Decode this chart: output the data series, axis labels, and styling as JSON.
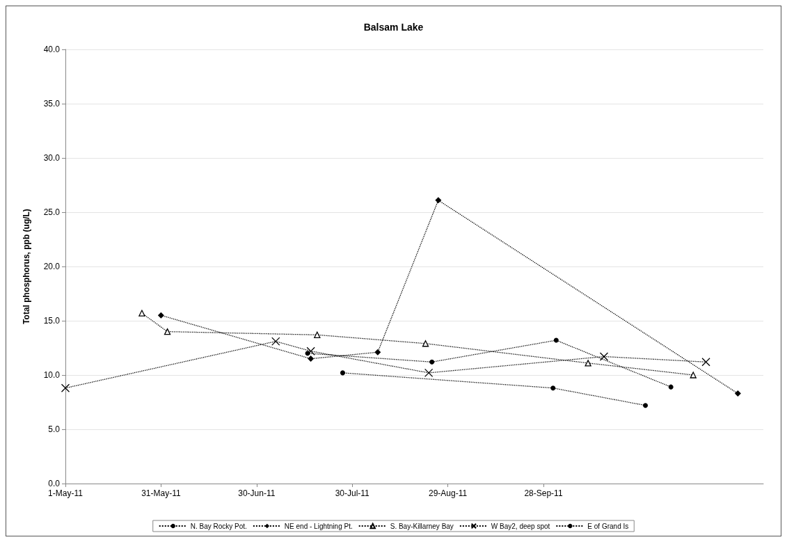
{
  "chart_data": {
    "type": "line",
    "title": "Balsam Lake",
    "ylabel": "Total phosphorus, ppb (ug/L)",
    "xlim": [
      "2011-05-01",
      "2011-12-06"
    ],
    "xticks": [
      {
        "value": "2011-05-01",
        "label": "1-May-11"
      },
      {
        "value": "2011-05-31",
        "label": "31-May-11"
      },
      {
        "value": "2011-06-30",
        "label": "30-Jun-11"
      },
      {
        "value": "2011-07-30",
        "label": "30-Jul-11"
      },
      {
        "value": "2011-08-29",
        "label": "29-Aug-11"
      },
      {
        "value": "2011-09-28",
        "label": "28-Sep-11"
      }
    ],
    "ylim": [
      0,
      40
    ],
    "yticks": [
      {
        "value": 0,
        "label": "0.0"
      },
      {
        "value": 5,
        "label": "5.0"
      },
      {
        "value": 10,
        "label": "10.0"
      },
      {
        "value": 15,
        "label": "15.0"
      },
      {
        "value": 20,
        "label": "20.0"
      },
      {
        "value": 25,
        "label": "25.0"
      },
      {
        "value": 30,
        "label": "30.0"
      },
      {
        "value": 35,
        "label": "35.0"
      },
      {
        "value": 40,
        "label": "40.0"
      }
    ],
    "grid": "y",
    "legend": "bottom",
    "line_style": "dotted",
    "series": [
      {
        "name": "N. Bay Rocky Pot.",
        "color": "#000000",
        "marker": "circle",
        "x": [
          "2011-07-16",
          "2011-08-24",
          "2011-10-02",
          "2011-11-07"
        ],
        "values": [
          12.0,
          11.2,
          13.2,
          8.9
        ]
      },
      {
        "name": "NE end - Lightning Pt.",
        "color": "#000000",
        "marker": "diamond",
        "x": [
          "2011-05-31",
          "2011-07-17",
          "2011-08-07",
          "2011-08-26",
          "2011-11-28"
        ],
        "values": [
          15.5,
          11.5,
          12.1,
          26.1,
          8.3
        ]
      },
      {
        "name": "S. Bay-Killarney Bay",
        "color": "#000000",
        "marker": "triangle",
        "x": [
          "2011-05-25",
          "2011-06-02",
          "2011-07-19",
          "2011-08-22",
          "2011-10-12",
          "2011-11-14"
        ],
        "values": [
          15.7,
          14.0,
          13.7,
          12.9,
          11.1,
          10.0
        ]
      },
      {
        "name": "W Bay2, deep spot",
        "color": "#000000",
        "marker": "cross",
        "x": [
          "2011-05-01",
          "2011-07-06",
          "2011-07-17",
          "2011-08-23",
          "2011-10-17",
          "2011-11-18"
        ],
        "values": [
          8.8,
          13.1,
          12.2,
          10.2,
          11.7,
          11.2
        ]
      },
      {
        "name": "E of Grand Is",
        "color": "#000000",
        "marker": "circle",
        "x": [
          "2011-07-27",
          "2011-10-01",
          "2011-10-30"
        ],
        "values": [
          10.2,
          8.8,
          7.2
        ]
      }
    ]
  }
}
